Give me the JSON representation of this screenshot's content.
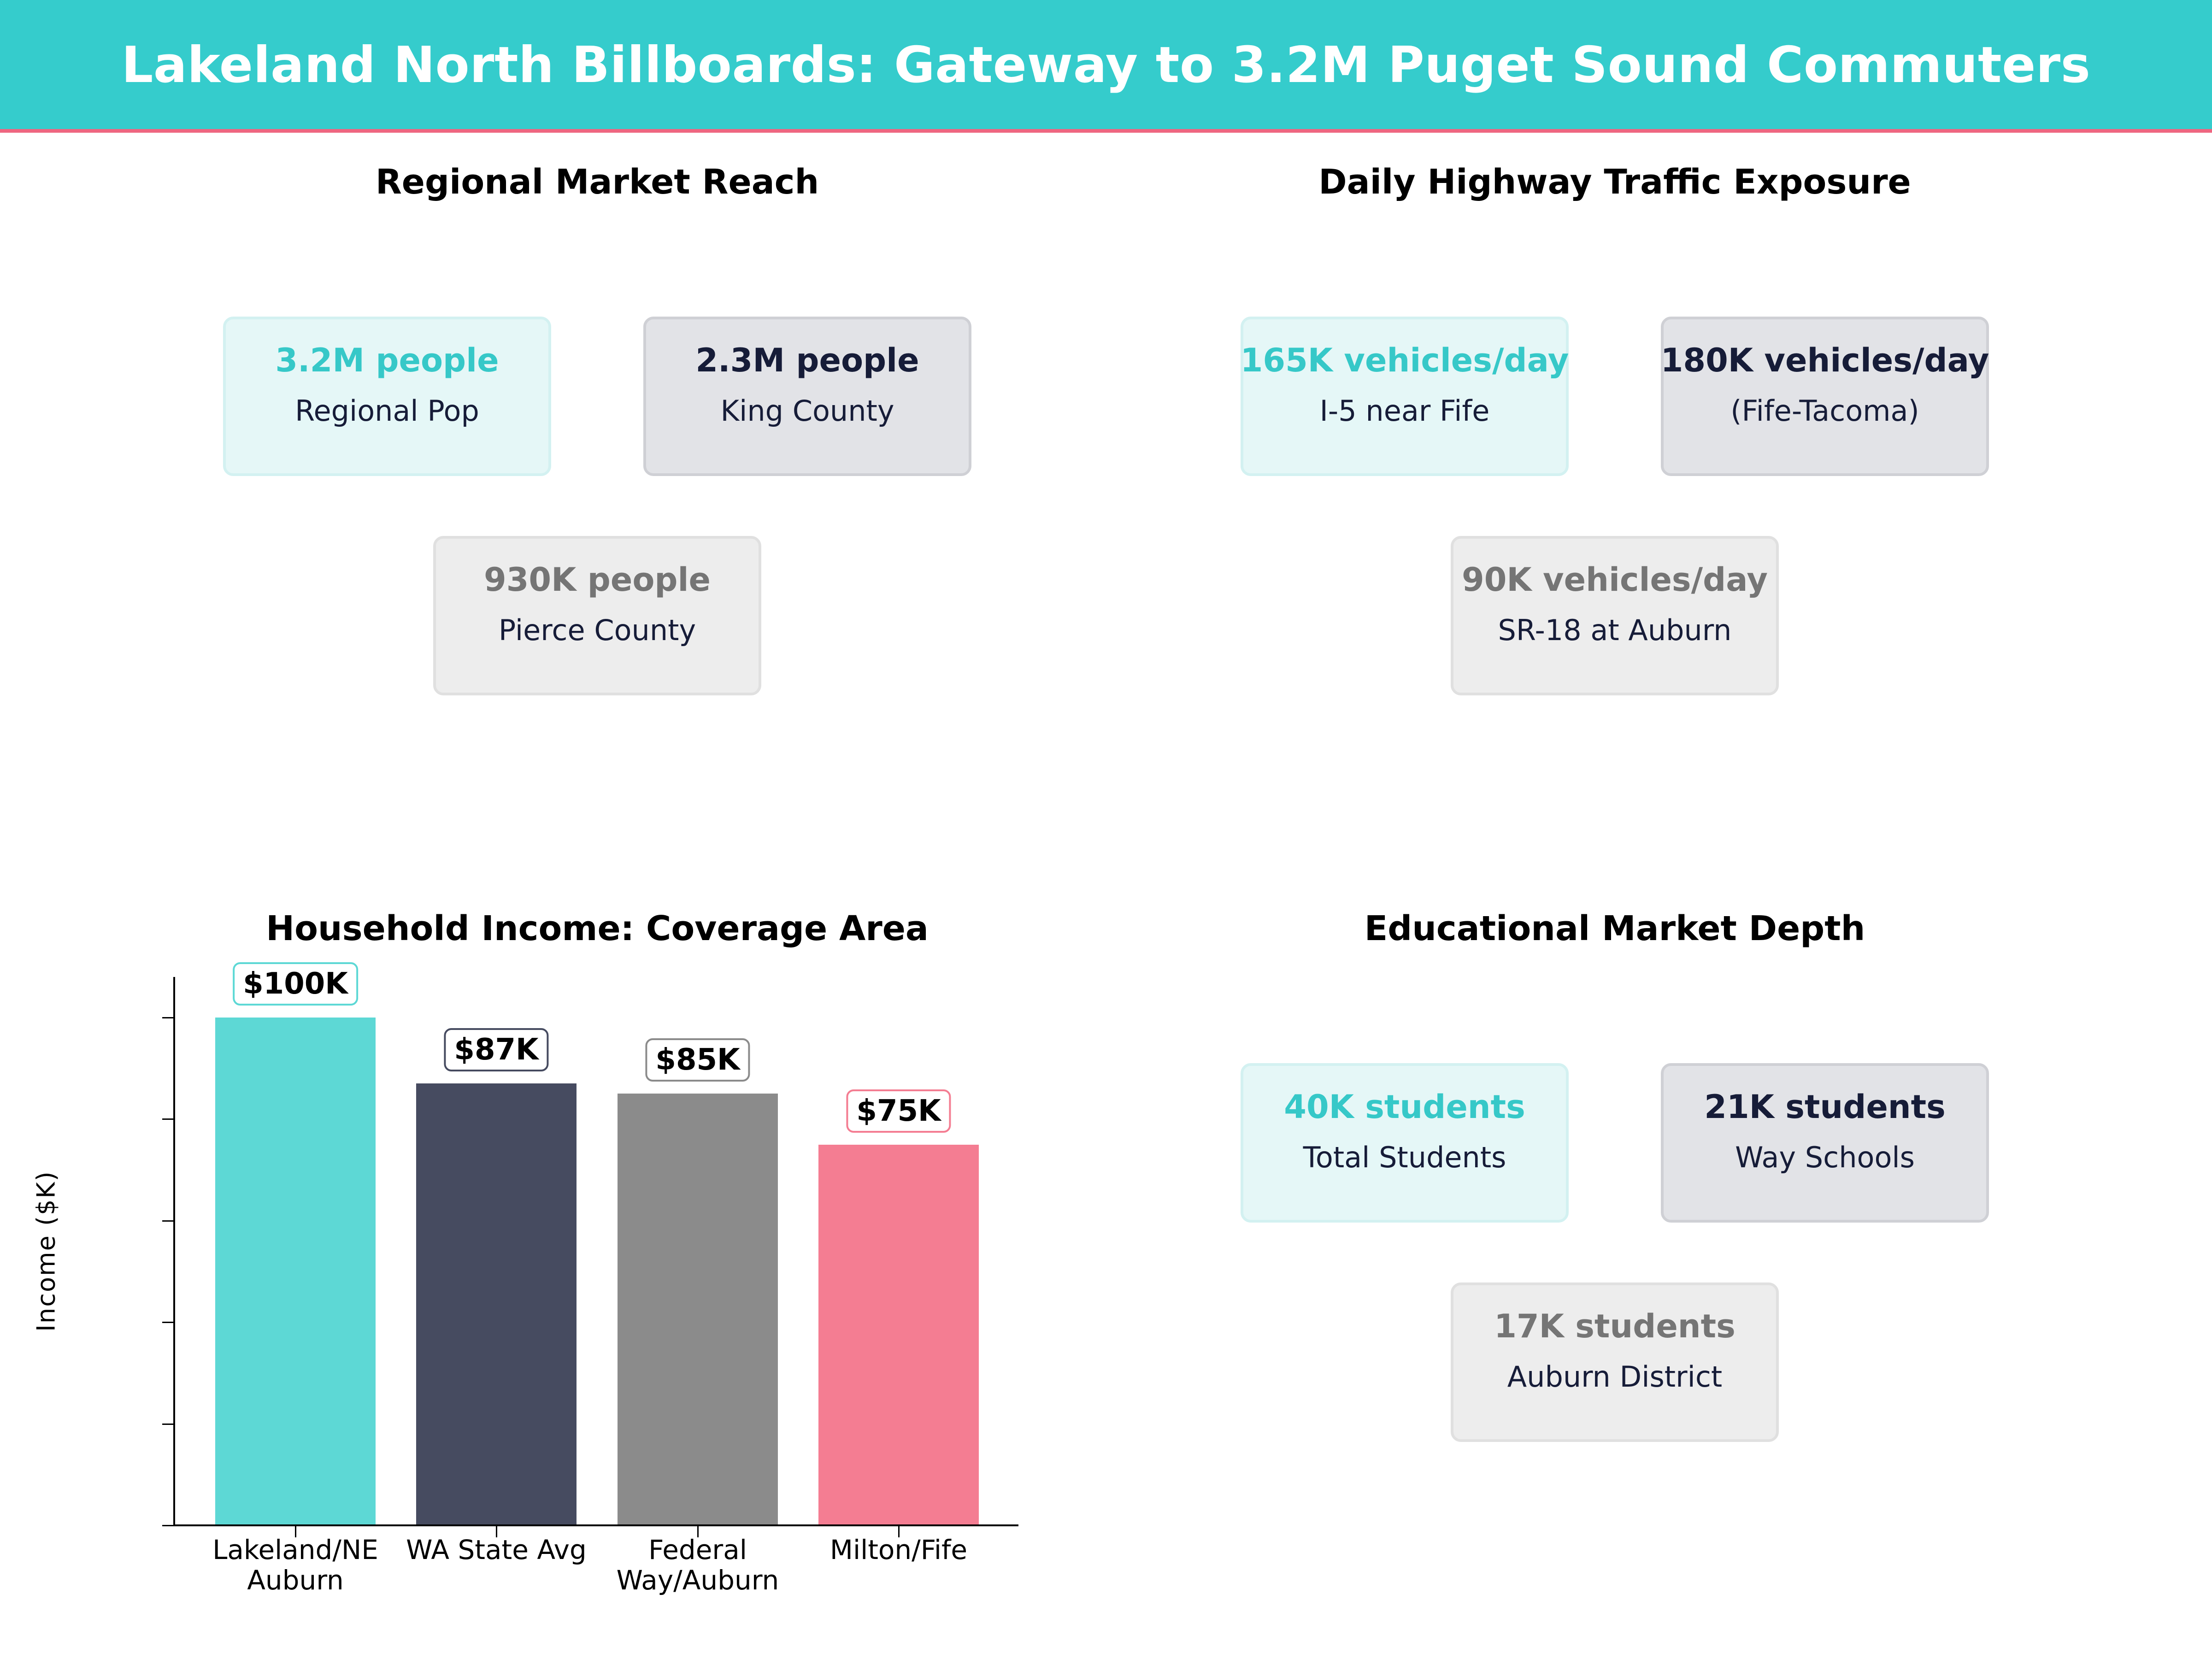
{
  "header": {
    "title": "Lakeland North Billboards: Gateway to 3.2M Puget Sound Commuters",
    "background_color": "#35cccc",
    "accent_rule_color": "#ee6680"
  },
  "regional_reach": {
    "title": "Regional Market Reach",
    "cards": [
      {
        "value": "3.2M people",
        "label": "Regional Pop",
        "style": "teal"
      },
      {
        "value": "2.3M people",
        "label": "King County",
        "style": "navy"
      },
      {
        "value": "930K people",
        "label": "Pierce County",
        "style": "gray"
      }
    ]
  },
  "traffic_exposure": {
    "title": "Daily Highway Traffic Exposure",
    "cards": [
      {
        "value": "165K vehicles/day",
        "label": "I-5 near Fife",
        "style": "teal"
      },
      {
        "value": "180K vehicles/day",
        "label": "(Fife-Tacoma)",
        "style": "navy"
      },
      {
        "value": "90K vehicles/day",
        "label": "SR-18 at Auburn",
        "style": "gray"
      }
    ]
  },
  "education": {
    "title": "Educational Market Depth",
    "cards": [
      {
        "value": "40K students",
        "label": "Total Students",
        "style": "teal"
      },
      {
        "value": "21K students",
        "label": "Way Schools",
        "style": "navy"
      },
      {
        "value": "17K students",
        "label": "Auburn District",
        "style": "gray"
      }
    ]
  },
  "income_chart": {
    "title": "Household Income: Coverage Area",
    "ylabel": "Income ($K)",
    "yticks": [
      "0",
      "20000",
      "40000",
      "60000",
      "80000",
      "100000"
    ],
    "bars": [
      {
        "category": "Lakeland/NE\nAuburn",
        "value": 100000,
        "label": "$100K",
        "color": "#5dd8d5",
        "label_border": "#5dd8d5"
      },
      {
        "category": "WA State Avg",
        "value": 87000,
        "label": "$87K",
        "color": "#464b60",
        "label_border": "#464b60"
      },
      {
        "category": "Federal\nWay/Auburn",
        "value": 85000,
        "label": "$85K",
        "color": "#8b8b8b",
        "label_border": "#8b8b8b"
      },
      {
        "category": "Milton/Fife",
        "value": 75000,
        "label": "$75K",
        "color": "#f47d92",
        "label_border": "#f47d92"
      }
    ]
  },
  "chart_data": {
    "type": "bar",
    "title": "Household Income: Coverage Area",
    "categories": [
      "Lakeland/NE Auburn",
      "WA State Avg",
      "Federal Way/Auburn",
      "Milton/Fife"
    ],
    "values": [
      100000,
      87000,
      85000,
      75000
    ],
    "data_labels": [
      "$100K",
      "$87K",
      "$85K",
      "$75K"
    ],
    "colors": [
      "#5dd8d5",
      "#464b60",
      "#8b8b8b",
      "#f47d92"
    ],
    "xlabel": "",
    "ylabel": "Income ($K)",
    "ylim": [
      0,
      107500
    ],
    "yticks": [
      0,
      20000,
      40000,
      60000,
      80000,
      100000
    ],
    "grid": false,
    "legend": null
  }
}
